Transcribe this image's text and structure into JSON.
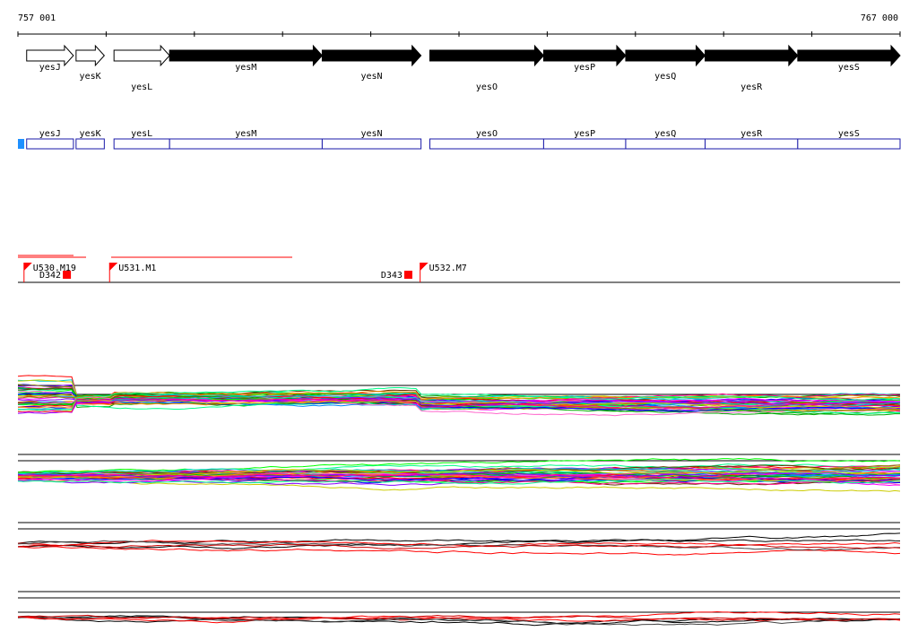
{
  "ruler": {
    "start_label": "757 001",
    "end_label": "767 000",
    "start": 757001,
    "end": 767000
  },
  "genes": [
    {
      "name": "yesJ",
      "start": 757100,
      "end": 757630,
      "style": "open",
      "label_row": 0
    },
    {
      "name": "yesK",
      "start": 757660,
      "end": 757980,
      "style": "open",
      "label_row": 1
    },
    {
      "name": "yesL",
      "start": 758090,
      "end": 758720,
      "style": "open",
      "label_row": 2
    },
    {
      "name": "yesM",
      "start": 758720,
      "end": 760450,
      "style": "filled",
      "label_row": 0
    },
    {
      "name": "yesN",
      "start": 760450,
      "end": 761570,
      "style": "filled",
      "label_row": 1
    },
    {
      "name": "yesO",
      "start": 761670,
      "end": 762960,
      "style": "filled",
      "label_row": 2
    },
    {
      "name": "yesP",
      "start": 762960,
      "end": 763890,
      "style": "filled",
      "label_row": 0
    },
    {
      "name": "yesQ",
      "start": 763890,
      "end": 764790,
      "style": "filled",
      "label_row": 1
    },
    {
      "name": "yesR",
      "start": 764790,
      "end": 765840,
      "style": "filled",
      "label_row": 2
    },
    {
      "name": "yesS",
      "start": 765840,
      "end": 767000,
      "style": "filled",
      "label_row": 0
    }
  ],
  "annotations": [
    {
      "name": "U530.M19",
      "pos": 757070,
      "type": "flag"
    },
    {
      "name": "D342",
      "pos": 757510,
      "type": "box"
    },
    {
      "name": "U531.M1",
      "pos": 758040,
      "type": "flag"
    },
    {
      "name": "D343",
      "pos": 761380,
      "type": "box"
    },
    {
      "name": "U532.M7",
      "pos": 761560,
      "type": "flag"
    }
  ],
  "colors": {
    "gene_box": "#1a1aa8",
    "marker": "#1e90ff",
    "annotation": "#ff0000",
    "axis": "#000000"
  }
}
